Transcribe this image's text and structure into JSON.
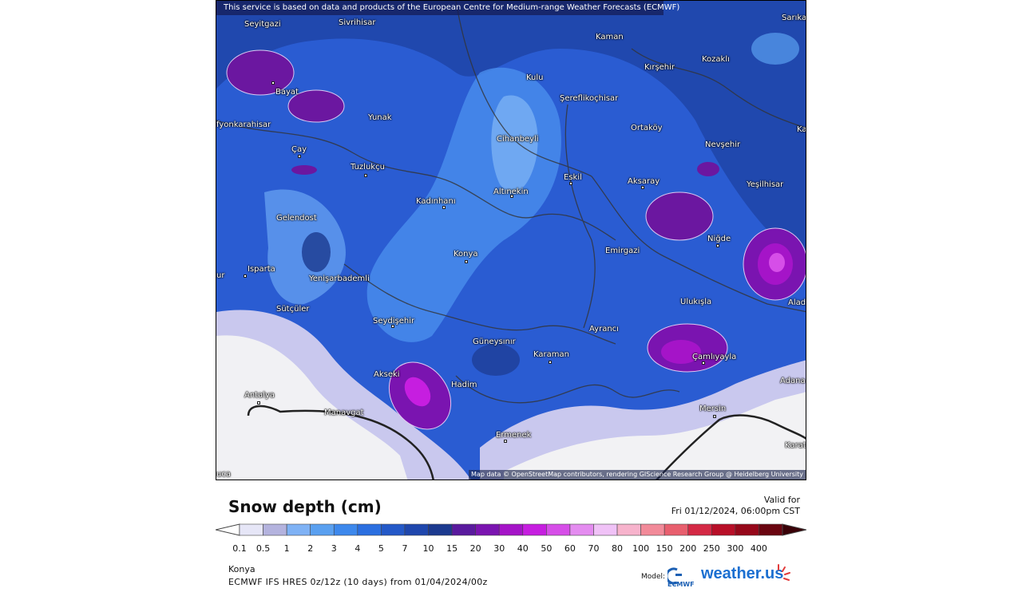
{
  "map": {
    "attribution_top": "This service is based on data and products of the European Centre for Medium-range Weather Forecasts (ECMWF)",
    "attribution_bottom": "Map data © OpenStreetMap contributors, rendering GIScience Research Group @ Heidelberg University",
    "colors": {
      "light": "#5aa0f0",
      "mid": "#2b5fd0",
      "deep": "#1f3f9e",
      "purple": "#7a1fa6",
      "none": "#f2f2f4",
      "lavender": "#c9c8ee"
    },
    "cities": [
      {
        "id": "seyitgazi",
        "name": "Seyitgazi"
      },
      {
        "id": "sivrihisar",
        "name": "Sivrihisar"
      },
      {
        "id": "kaman",
        "name": "Kaman"
      },
      {
        "id": "sarika",
        "name": "Sarıka"
      },
      {
        "id": "kozakli",
        "name": "Kozaklı"
      },
      {
        "id": "kirsehir",
        "name": "Kırşehir"
      },
      {
        "id": "kulu",
        "name": "Kulu"
      },
      {
        "id": "bayat",
        "name": "Bayat"
      },
      {
        "id": "serefli",
        "name": "Şereflikoçhisar"
      },
      {
        "id": "afyon",
        "name": "fyonkarahisar"
      },
      {
        "id": "yunak",
        "name": "Yunak"
      },
      {
        "id": "ortakoy",
        "name": "Ortaköy"
      },
      {
        "id": "ka",
        "name": "Ka"
      },
      {
        "id": "cihanbeyli",
        "name": "Cihanbeyli"
      },
      {
        "id": "nevsehir",
        "name": "Nevşehir"
      },
      {
        "id": "cay",
        "name": "Çay"
      },
      {
        "id": "tuzlukcu",
        "name": "Tuzlukçu"
      },
      {
        "id": "eskil",
        "name": "Eskil"
      },
      {
        "id": "aksaray",
        "name": "Aksaray"
      },
      {
        "id": "yesilhisar",
        "name": "Yeşilhisar"
      },
      {
        "id": "altinekin",
        "name": "Altınekin"
      },
      {
        "id": "kadinhani",
        "name": "Kadınhanı"
      },
      {
        "id": "gelendost",
        "name": "Gelendost"
      },
      {
        "id": "nigde",
        "name": "Niğde"
      },
      {
        "id": "konya",
        "name": "Konya"
      },
      {
        "id": "emirgazi",
        "name": "Emirgazi"
      },
      {
        "id": "ur",
        "name": "ur"
      },
      {
        "id": "isparta",
        "name": "Isparta"
      },
      {
        "id": "yenisar",
        "name": "Yenişarbademli"
      },
      {
        "id": "ulukisla",
        "name": "Ulukışla"
      },
      {
        "id": "alad",
        "name": "Alad"
      },
      {
        "id": "sutculer",
        "name": "Sütçüler"
      },
      {
        "id": "seydisehir",
        "name": "Seydişehir"
      },
      {
        "id": "ayranci",
        "name": "Ayrancı"
      },
      {
        "id": "guneysinir",
        "name": "Güneysınır"
      },
      {
        "id": "karaman",
        "name": "Karaman"
      },
      {
        "id": "camliyayla",
        "name": "Çamlıyayla"
      },
      {
        "id": "akseki",
        "name": "Akseki"
      },
      {
        "id": "adana",
        "name": "Adana"
      },
      {
        "id": "hadim",
        "name": "Hadim"
      },
      {
        "id": "antalya",
        "name": "Antalya"
      },
      {
        "id": "manavgat",
        "name": "Manavgat"
      },
      {
        "id": "mersin",
        "name": "Mersin"
      },
      {
        "id": "ermenek",
        "name": "Ermenek"
      },
      {
        "id": "karat",
        "name": "Karat"
      },
      {
        "id": "uca",
        "name": "uca"
      }
    ]
  },
  "legend": {
    "title": "Snow depth (cm)",
    "valid_label": "Valid for",
    "valid_date": "Fri 01/12/2024, 06:00pm CST",
    "ticks": [
      "0.1",
      "0.5",
      "1",
      "2",
      "3",
      "4",
      "5",
      "7",
      "10",
      "15",
      "20",
      "30",
      "40",
      "50",
      "60",
      "70",
      "80",
      "100",
      "150",
      "200",
      "250",
      "300",
      "400"
    ],
    "colors": [
      "#e6e6f7",
      "#b4b3de",
      "#7fb2f5",
      "#5aa0f0",
      "#3d88ec",
      "#2b6fe0",
      "#2459c8",
      "#1f47ad",
      "#1c3a8f",
      "#5a1a9e",
      "#7a14b0",
      "#a514c8",
      "#c61ee0",
      "#d64ee8",
      "#e48cf0",
      "#f0c2f7",
      "#f7b3cc",
      "#f28a99",
      "#e85f6e",
      "#d42945",
      "#b80f28",
      "#96081a",
      "#6a0510"
    ]
  },
  "footer": {
    "location": "Konya",
    "run_info": "ECMWF IFS HRES 0z/12z (10 days) from 01/04/2024/00z",
    "model_label": "Model:",
    "ecmwf_text": "ECMWF",
    "brand": "weather.us"
  }
}
